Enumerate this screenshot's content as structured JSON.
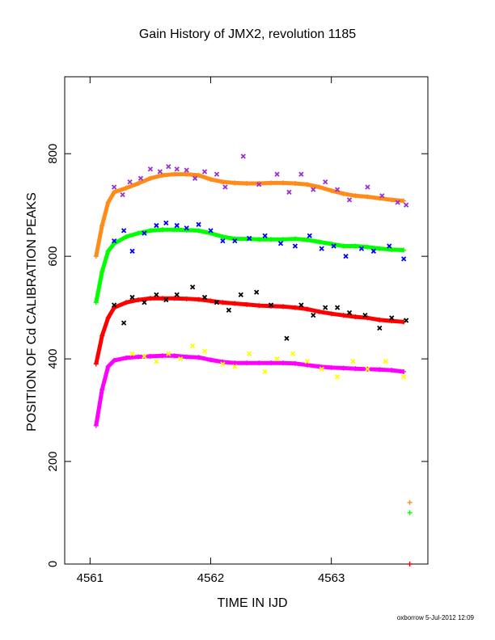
{
  "chart_data": {
    "type": "scatter",
    "title": "Gain History of JMX2, revolution 1185",
    "xlabel": "TIME IN IJD",
    "ylabel": "POSITION OF Cd CALIBRATION PEAKS",
    "xlim": [
      4560.79,
      4563.8
    ],
    "ylim": [
      0,
      950
    ],
    "x_ticks": [
      4561,
      4562,
      4563
    ],
    "x_tick_labels": [
      "4561",
      "4562",
      "4563"
    ],
    "y_ticks": [
      0,
      200,
      400,
      600,
      800
    ],
    "y_tick_labels": [
      "0",
      "200",
      "400",
      "600",
      "800"
    ],
    "grid": false,
    "legend": "none",
    "series": [
      {
        "color": "#ff8c1a",
        "marker": "plus",
        "x": [
          4561.05,
          4561.1,
          4561.15,
          4561.2,
          4561.3,
          4561.4,
          4561.5,
          4561.6,
          4561.7,
          4561.8,
          4561.9,
          4562.0,
          4562.1,
          4562.2,
          4562.3,
          4562.4,
          4562.5,
          4562.6,
          4562.7,
          4562.8,
          4562.9,
          4563.0,
          4563.1,
          4563.2,
          4563.3,
          4563.4,
          4563.5,
          4563.6
        ],
        "y": [
          600,
          660,
          705,
          725,
          733,
          742,
          752,
          758,
          760,
          760,
          758,
          750,
          745,
          743,
          742,
          742,
          743,
          743,
          742,
          740,
          735,
          728,
          722,
          718,
          716,
          713,
          710,
          708
        ]
      },
      {
        "color": "#ff8c1a",
        "marker": "plus",
        "x": [
          4563.65
        ],
        "y": [
          120
        ]
      },
      {
        "color": "#9932cc",
        "marker": "x",
        "x": [
          4561.2,
          4561.27,
          4561.33,
          4561.42,
          4561.5,
          4561.58,
          4561.65,
          4561.72,
          4561.8,
          4561.87,
          4561.95,
          4562.05,
          4562.12,
          4562.27,
          4562.4,
          4562.55,
          4562.65,
          4562.75,
          4562.85,
          4562.95,
          4563.05,
          4563.15,
          4563.3,
          4563.42,
          4563.55,
          4563.62
        ],
        "y": [
          735,
          720,
          745,
          752,
          770,
          765,
          775,
          770,
          768,
          752,
          765,
          760,
          735,
          795,
          740,
          760,
          725,
          760,
          730,
          745,
          730,
          710,
          735,
          718,
          705,
          700
        ]
      },
      {
        "color": "#00ff00",
        "marker": "plus",
        "x": [
          4561.05,
          4561.1,
          4561.15,
          4561.2,
          4561.3,
          4561.4,
          4561.5,
          4561.6,
          4561.7,
          4561.8,
          4561.9,
          4562.0,
          4562.1,
          4562.2,
          4562.3,
          4562.4,
          4562.5,
          4562.6,
          4562.7,
          4562.8,
          4562.9,
          4563.0,
          4563.1,
          4563.2,
          4563.3,
          4563.4,
          4563.5,
          4563.6
        ],
        "y": [
          510,
          570,
          610,
          625,
          638,
          645,
          650,
          652,
          652,
          651,
          650,
          645,
          638,
          634,
          634,
          633,
          633,
          633,
          634,
          632,
          628,
          624,
          620,
          620,
          618,
          615,
          613,
          612
        ]
      },
      {
        "color": "#00ff00",
        "marker": "plus",
        "x": [
          4563.65
        ],
        "y": [
          100
        ]
      },
      {
        "color": "#0000ff",
        "marker": "x",
        "x": [
          4561.2,
          4561.28,
          4561.35,
          4561.45,
          4561.55,
          4561.63,
          4561.72,
          4561.8,
          4561.9,
          4562.0,
          4562.1,
          4562.2,
          4562.32,
          4562.45,
          4562.58,
          4562.7,
          4562.82,
          4562.92,
          4563.02,
          4563.12,
          4563.25,
          4563.35,
          4563.48,
          4563.6
        ],
        "y": [
          630,
          650,
          610,
          645,
          660,
          665,
          660,
          655,
          662,
          650,
          630,
          630,
          635,
          640,
          625,
          620,
          640,
          615,
          620,
          600,
          615,
          610,
          620,
          595
        ]
      },
      {
        "color": "#ff0000",
        "marker": "plus",
        "x": [
          4561.05,
          4561.1,
          4561.15,
          4561.2,
          4561.3,
          4561.4,
          4561.5,
          4561.6,
          4561.7,
          4561.8,
          4561.9,
          4562.0,
          4562.1,
          4562.2,
          4562.3,
          4562.4,
          4562.5,
          4562.6,
          4562.7,
          4562.8,
          4562.9,
          4563.0,
          4563.1,
          4563.2,
          4563.3,
          4563.4,
          4563.5,
          4563.6
        ],
        "y": [
          390,
          445,
          480,
          500,
          510,
          515,
          518,
          518,
          518,
          517,
          516,
          513,
          510,
          508,
          506,
          504,
          503,
          502,
          500,
          497,
          492,
          488,
          485,
          482,
          480,
          476,
          474,
          472
        ]
      },
      {
        "color": "#000000",
        "marker": "x",
        "x": [
          4561.2,
          4561.28,
          4561.35,
          4561.45,
          4561.55,
          4561.63,
          4561.72,
          4561.85,
          4561.95,
          4562.05,
          4562.15,
          4562.25,
          4562.38,
          4562.5,
          4562.63,
          4562.75,
          4562.85,
          4562.95,
          4563.05,
          4563.15,
          4563.28,
          4563.4,
          4563.5,
          4563.62
        ],
        "y": [
          505,
          470,
          520,
          510,
          525,
          515,
          525,
          540,
          520,
          510,
          495,
          525,
          530,
          505,
          440,
          505,
          485,
          500,
          500,
          490,
          485,
          460,
          480,
          475
        ]
      },
      {
        "color": "#ff00ff",
        "marker": "plus",
        "x": [
          4561.05,
          4561.1,
          4561.15,
          4561.2,
          4561.3,
          4561.4,
          4561.5,
          4561.6,
          4561.7,
          4561.8,
          4561.9,
          4562.0,
          4562.1,
          4562.2,
          4562.3,
          4562.4,
          4562.5,
          4562.6,
          4562.7,
          4562.8,
          4562.9,
          4563.0,
          4563.1,
          4563.2,
          4563.3,
          4563.4,
          4563.5,
          4563.6
        ],
        "y": [
          270,
          340,
          385,
          397,
          402,
          404,
          405,
          406,
          406,
          404,
          403,
          398,
          394,
          392,
          392,
          392,
          392,
          392,
          391,
          388,
          385,
          383,
          382,
          381,
          380,
          379,
          378,
          375
        ]
      },
      {
        "color": "#ffff00",
        "marker": "x",
        "x": [
          4561.35,
          4561.45,
          4561.55,
          4561.65,
          4561.75,
          4561.85,
          4561.95,
          4562.1,
          4562.2,
          4562.32,
          4562.45,
          4562.55,
          4562.68,
          4562.8,
          4562.92,
          4563.05,
          4563.18,
          4563.3,
          4563.45,
          4563.6
        ],
        "y": [
          410,
          405,
          395,
          410,
          400,
          425,
          415,
          390,
          385,
          410,
          375,
          400,
          410,
          395,
          380,
          365,
          395,
          380,
          395,
          365
        ]
      }
    ],
    "trailing_point": {
      "color": "#ff0000",
      "x": 4563.65,
      "y": 0
    }
  },
  "footer": {
    "text": "oxborrow  5-Jul-2012 12:09"
  }
}
